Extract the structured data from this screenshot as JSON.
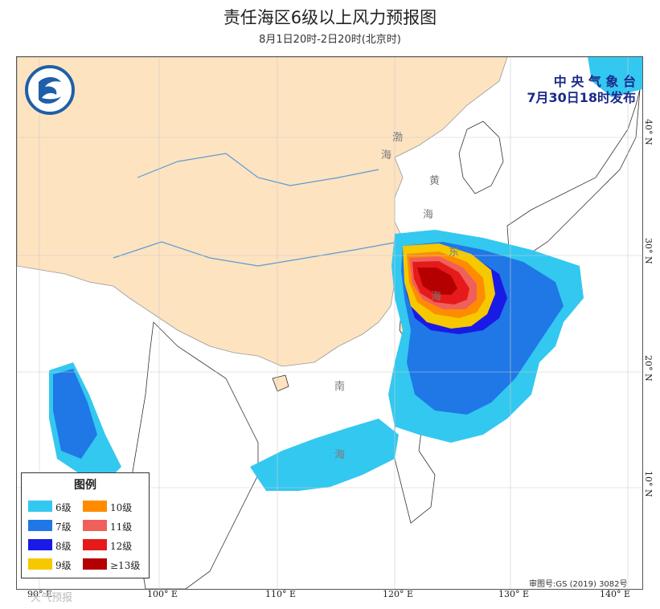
{
  "title": "责任海区6级以上风力预报图",
  "subtitle": "8月1日20时-2日20时(北京时)",
  "issuer": {
    "line1": "中 央 气 象 台",
    "line2": "7月30日18时发布"
  },
  "legend": {
    "title": "图例",
    "items": [
      {
        "label": "6级",
        "color": "#33c8f0"
      },
      {
        "label": "10级",
        "color": "#ff8c00"
      },
      {
        "label": "7级",
        "color": "#1f78e6"
      },
      {
        "label": "11级",
        "color": "#f0605a"
      },
      {
        "label": "8级",
        "color": "#1a1ae6"
      },
      {
        "label": "12级",
        "color": "#e61a1a"
      },
      {
        "label": "9级",
        "color": "#f5c800"
      },
      {
        "label": "≥13级",
        "color": "#b40000"
      }
    ]
  },
  "x_axis": [
    "90° E",
    "100° E",
    "110° E",
    "120° E",
    "130° E",
    "140° E"
  ],
  "y_axis": [
    "40° N",
    "30° N",
    "20° N",
    "10° N"
  ],
  "sea_labels": [
    "渤",
    "海",
    "黄",
    "海",
    "东",
    "海",
    "南",
    "海"
  ],
  "approval_number": "审图号:GS (2019) 3082号",
  "watermark": "天气预报",
  "colors": {
    "land_china": "#fde3c0",
    "ocean": "#ffffff",
    "border": "#aaaaaa",
    "river": "#5b9bd5"
  },
  "icons": {
    "logo": "cma-logo-icon"
  }
}
